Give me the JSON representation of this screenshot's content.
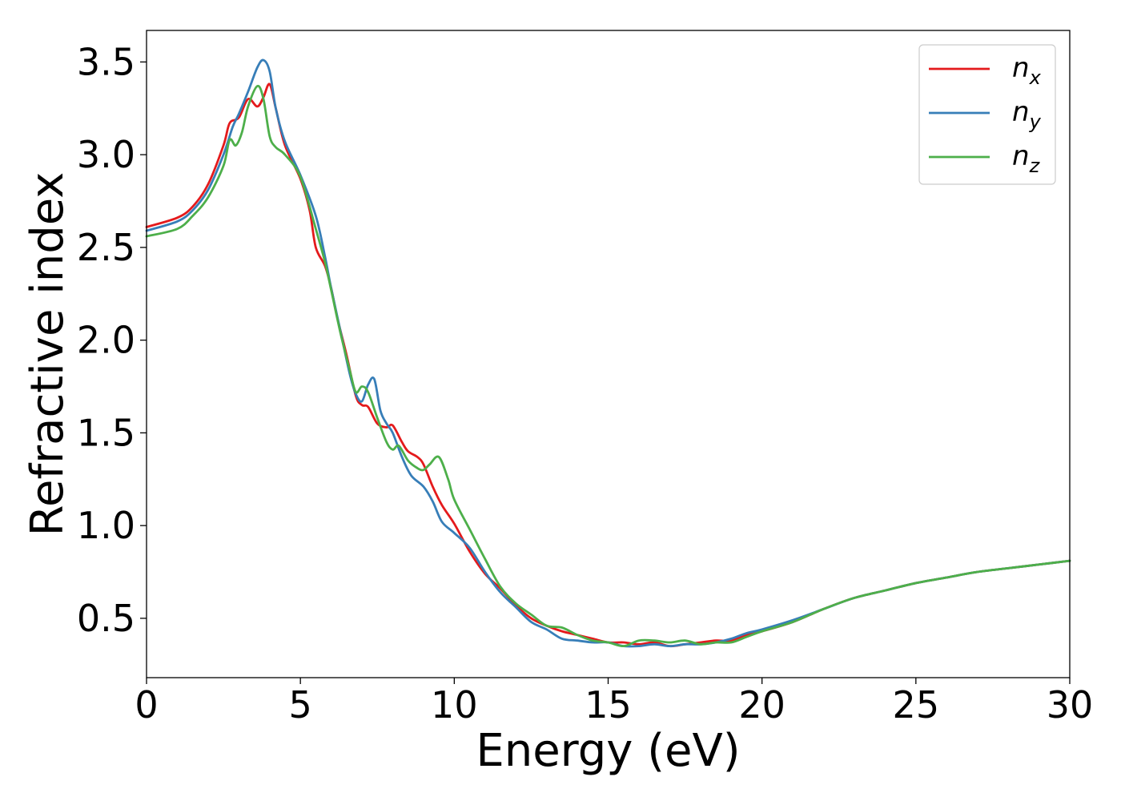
{
  "chart_data": {
    "type": "line",
    "title": "",
    "xlabel": "Energy (eV)",
    "ylabel": "Refractive index",
    "xlim": [
      0,
      30
    ],
    "ylim": [
      0.18,
      3.67
    ],
    "x_ticks": [
      0,
      5,
      10,
      15,
      20,
      25,
      30
    ],
    "x_tick_labels": [
      "0",
      "5",
      "10",
      "15",
      "20",
      "25",
      "30"
    ],
    "y_ticks": [
      0.5,
      1.0,
      1.5,
      2.0,
      2.5,
      3.0,
      3.5
    ],
    "y_tick_labels": [
      "0.5",
      "1.0",
      "1.5",
      "2.0",
      "2.5",
      "3.0",
      "3.5"
    ],
    "grid": false,
    "legend_position": "top-right",
    "series": [
      {
        "name": "n_x",
        "label_main": "n",
        "label_sub": "x",
        "color": "#e41a1c",
        "points": [
          [
            0,
            2.61
          ],
          [
            1,
            2.66
          ],
          [
            1.5,
            2.72
          ],
          [
            2,
            2.84
          ],
          [
            2.5,
            3.05
          ],
          [
            2.7,
            3.17
          ],
          [
            3,
            3.2
          ],
          [
            3.3,
            3.3
          ],
          [
            3.6,
            3.26
          ],
          [
            3.8,
            3.31
          ],
          [
            4,
            3.38
          ],
          [
            4.2,
            3.25
          ],
          [
            4.5,
            3.05
          ],
          [
            5,
            2.87
          ],
          [
            5.3,
            2.7
          ],
          [
            5.5,
            2.5
          ],
          [
            5.8,
            2.4
          ],
          [
            6,
            2.28
          ],
          [
            6.2,
            2.12
          ],
          [
            6.5,
            1.92
          ],
          [
            6.8,
            1.7
          ],
          [
            7,
            1.65
          ],
          [
            7.2,
            1.64
          ],
          [
            7.5,
            1.55
          ],
          [
            7.8,
            1.53
          ],
          [
            8,
            1.54
          ],
          [
            8.3,
            1.45
          ],
          [
            8.5,
            1.4
          ],
          [
            8.8,
            1.37
          ],
          [
            9,
            1.33
          ],
          [
            9.3,
            1.21
          ],
          [
            9.6,
            1.11
          ],
          [
            10,
            1.01
          ],
          [
            10.5,
            0.86
          ],
          [
            11,
            0.74
          ],
          [
            11.5,
            0.66
          ],
          [
            12,
            0.57
          ],
          [
            12.5,
            0.5
          ],
          [
            13,
            0.46
          ],
          [
            13.5,
            0.43
          ],
          [
            14,
            0.41
          ],
          [
            14.5,
            0.39
          ],
          [
            15,
            0.37
          ],
          [
            15.5,
            0.37
          ],
          [
            16,
            0.36
          ],
          [
            16.5,
            0.37
          ],
          [
            17,
            0.35
          ],
          [
            17.5,
            0.36
          ],
          [
            18,
            0.37
          ],
          [
            18.5,
            0.38
          ],
          [
            19,
            0.38
          ],
          [
            19.5,
            0.41
          ],
          [
            20,
            0.43
          ],
          [
            21,
            0.48
          ],
          [
            22,
            0.55
          ],
          [
            23,
            0.61
          ],
          [
            24,
            0.65
          ],
          [
            25,
            0.69
          ],
          [
            26,
            0.72
          ],
          [
            27,
            0.75
          ],
          [
            28,
            0.77
          ],
          [
            29,
            0.79
          ],
          [
            30,
            0.81
          ]
        ]
      },
      {
        "name": "n_y",
        "label_main": "n",
        "label_sub": "y",
        "color": "#377eb8",
        "points": [
          [
            0,
            2.59
          ],
          [
            1,
            2.64
          ],
          [
            1.5,
            2.7
          ],
          [
            2,
            2.81
          ],
          [
            2.5,
            3.0
          ],
          [
            2.8,
            3.15
          ],
          [
            3,
            3.22
          ],
          [
            3.3,
            3.34
          ],
          [
            3.6,
            3.47
          ],
          [
            3.8,
            3.51
          ],
          [
            4,
            3.45
          ],
          [
            4.2,
            3.25
          ],
          [
            4.5,
            3.07
          ],
          [
            5,
            2.89
          ],
          [
            5.5,
            2.67
          ],
          [
            5.8,
            2.45
          ],
          [
            6,
            2.28
          ],
          [
            6.3,
            2.05
          ],
          [
            6.6,
            1.82
          ],
          [
            6.8,
            1.71
          ],
          [
            7,
            1.67
          ],
          [
            7.2,
            1.76
          ],
          [
            7.4,
            1.79
          ],
          [
            7.6,
            1.62
          ],
          [
            7.8,
            1.55
          ],
          [
            8,
            1.5
          ],
          [
            8.3,
            1.37
          ],
          [
            8.6,
            1.27
          ],
          [
            9,
            1.21
          ],
          [
            9.3,
            1.13
          ],
          [
            9.6,
            1.02
          ],
          [
            10,
            0.96
          ],
          [
            10.5,
            0.88
          ],
          [
            11,
            0.75
          ],
          [
            11.5,
            0.64
          ],
          [
            12,
            0.56
          ],
          [
            12.5,
            0.48
          ],
          [
            13,
            0.44
          ],
          [
            13.5,
            0.39
          ],
          [
            14,
            0.38
          ],
          [
            14.5,
            0.37
          ],
          [
            15,
            0.37
          ],
          [
            15.5,
            0.35
          ],
          [
            16,
            0.35
          ],
          [
            16.5,
            0.36
          ],
          [
            17,
            0.35
          ],
          [
            17.5,
            0.36
          ],
          [
            18,
            0.36
          ],
          [
            18.5,
            0.37
          ],
          [
            19,
            0.39
          ],
          [
            19.5,
            0.42
          ],
          [
            20,
            0.44
          ],
          [
            21,
            0.49
          ],
          [
            22,
            0.55
          ],
          [
            23,
            0.61
          ],
          [
            24,
            0.65
          ],
          [
            25,
            0.69
          ],
          [
            26,
            0.72
          ],
          [
            27,
            0.75
          ],
          [
            28,
            0.77
          ],
          [
            29,
            0.79
          ],
          [
            30,
            0.81
          ]
        ]
      },
      {
        "name": "n_z",
        "label_main": "n",
        "label_sub": "z",
        "color": "#4daf4a",
        "points": [
          [
            0,
            2.56
          ],
          [
            1,
            2.6
          ],
          [
            1.5,
            2.67
          ],
          [
            2,
            2.77
          ],
          [
            2.5,
            2.94
          ],
          [
            2.7,
            3.08
          ],
          [
            2.9,
            3.05
          ],
          [
            3.1,
            3.12
          ],
          [
            3.3,
            3.26
          ],
          [
            3.6,
            3.37
          ],
          [
            3.8,
            3.3
          ],
          [
            4,
            3.1
          ],
          [
            4.2,
            3.04
          ],
          [
            4.5,
            3.0
          ],
          [
            5,
            2.88
          ],
          [
            5.5,
            2.6
          ],
          [
            5.8,
            2.42
          ],
          [
            6,
            2.27
          ],
          [
            6.3,
            2.04
          ],
          [
            6.6,
            1.84
          ],
          [
            6.8,
            1.72
          ],
          [
            7,
            1.75
          ],
          [
            7.2,
            1.72
          ],
          [
            7.5,
            1.58
          ],
          [
            7.8,
            1.45
          ],
          [
            8,
            1.41
          ],
          [
            8.2,
            1.43
          ],
          [
            8.5,
            1.35
          ],
          [
            8.8,
            1.31
          ],
          [
            9,
            1.3
          ],
          [
            9.2,
            1.33
          ],
          [
            9.5,
            1.37
          ],
          [
            9.8,
            1.25
          ],
          [
            10,
            1.14
          ],
          [
            10.5,
            0.98
          ],
          [
            11,
            0.82
          ],
          [
            11.5,
            0.67
          ],
          [
            12,
            0.58
          ],
          [
            12.5,
            0.52
          ],
          [
            13,
            0.46
          ],
          [
            13.5,
            0.45
          ],
          [
            14,
            0.41
          ],
          [
            14.5,
            0.38
          ],
          [
            15,
            0.37
          ],
          [
            15.5,
            0.35
          ],
          [
            16,
            0.38
          ],
          [
            16.5,
            0.38
          ],
          [
            17,
            0.37
          ],
          [
            17.5,
            0.38
          ],
          [
            18,
            0.36
          ],
          [
            18.5,
            0.37
          ],
          [
            19,
            0.37
          ],
          [
            19.5,
            0.4
          ],
          [
            20,
            0.43
          ],
          [
            21,
            0.48
          ],
          [
            22,
            0.55
          ],
          [
            23,
            0.61
          ],
          [
            24,
            0.65
          ],
          [
            25,
            0.69
          ],
          [
            26,
            0.72
          ],
          [
            27,
            0.75
          ],
          [
            28,
            0.77
          ],
          [
            29,
            0.79
          ],
          [
            30,
            0.81
          ]
        ]
      }
    ]
  }
}
